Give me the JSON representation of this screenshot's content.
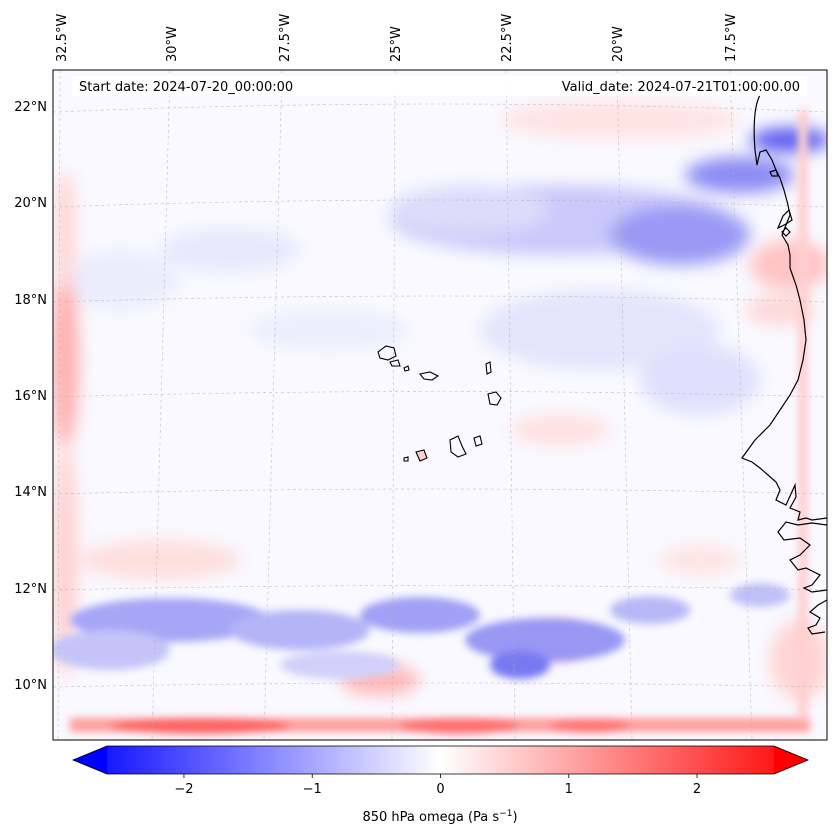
{
  "map": {
    "start_date": "Start date: 2024-07-20_00:00:00",
    "valid_date": "Valid_date: 2024-07-21T01:00:00.00",
    "lon_labels": [
      "32.5°W",
      "30°W",
      "27.5°W",
      "25°W",
      "22.5°W",
      "20°W",
      "17.5°W"
    ],
    "lat_labels": [
      "22°N",
      "20°N",
      "18°N",
      "16°N",
      "14°N",
      "12°N",
      "10°N"
    ],
    "colors": {
      "negative": "#0000ff",
      "zero": "#ffffff",
      "positive": "#ff0000",
      "coast": "#000000"
    }
  },
  "colorbar": {
    "label": "850 hPa omega (Pa s",
    "label_sup": "−1",
    "label_end": ")",
    "tick_labels": [
      "−2",
      "−1",
      "0",
      "1",
      "2"
    ],
    "range": [
      -2.6,
      2.6
    ]
  }
}
